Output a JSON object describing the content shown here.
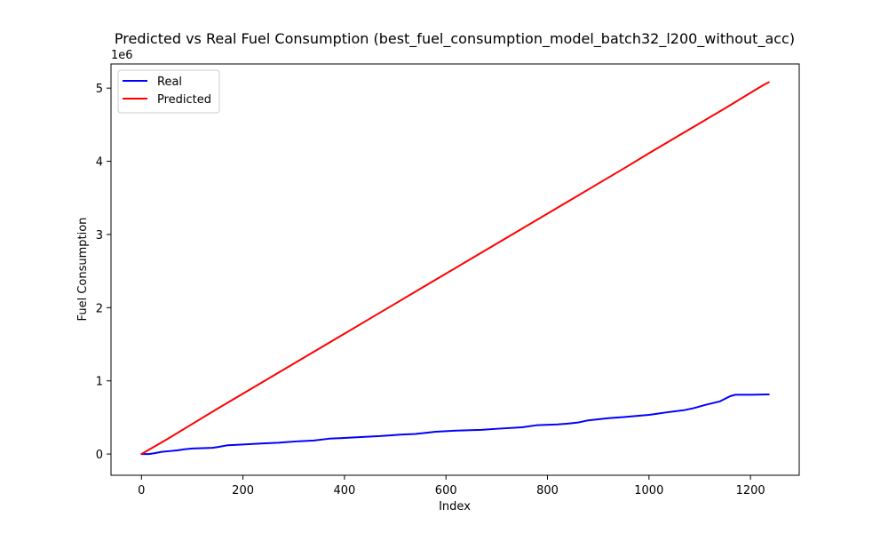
{
  "chart_data": {
    "type": "line",
    "title": "Predicted vs Real Fuel Consumption (best_fuel_consumption_model_batch32_l200_without_acc)",
    "xlabel": "Index",
    "ylabel": "Fuel Consumption",
    "y_offset_text": "1e6",
    "xlim": [
      -60,
      1296
    ],
    "ylim": [
      -290000,
      5330000
    ],
    "x_ticks": [
      0,
      200,
      400,
      600,
      800,
      1000,
      1200
    ],
    "x_tick_labels": [
      "0",
      "200",
      "400",
      "600",
      "800",
      "1000",
      "1200"
    ],
    "y_ticks": [
      0,
      1000000,
      2000000,
      3000000,
      4000000,
      5000000
    ],
    "y_tick_labels": [
      "0",
      "1",
      "2",
      "3",
      "4",
      "5"
    ],
    "grid": false,
    "legend_position": "top-left",
    "series": [
      {
        "name": "Real",
        "color": "#0000ff",
        "x": [
          0,
          15,
          25,
          40,
          55,
          70,
          85,
          100,
          140,
          150,
          170,
          200,
          240,
          270,
          290,
          310,
          340,
          370,
          400,
          440,
          470,
          490,
          510,
          540,
          560,
          580,
          620,
          670,
          700,
          750,
          780,
          820,
          840,
          860,
          880,
          920,
          950,
          1000,
          1010,
          1030,
          1070,
          1090,
          1110,
          1140,
          1160,
          1170,
          1200,
          1236
        ],
        "y": [
          0,
          0,
          10000,
          30000,
          40000,
          50000,
          65000,
          75000,
          85000,
          95000,
          120000,
          130000,
          145000,
          155000,
          165000,
          175000,
          185000,
          210000,
          220000,
          235000,
          245000,
          255000,
          265000,
          275000,
          290000,
          305000,
          320000,
          330000,
          345000,
          365000,
          395000,
          405000,
          415000,
          430000,
          460000,
          490000,
          505000,
          535000,
          545000,
          565000,
          600000,
          630000,
          670000,
          720000,
          790000,
          810000,
          810000,
          815000
        ]
      },
      {
        "name": "Predicted",
        "color": "#ff0000",
        "x": [
          0,
          50,
          100,
          150,
          200,
          250,
          300,
          350,
          400,
          450,
          500,
          550,
          600,
          650,
          700,
          750,
          800,
          850,
          900,
          950,
          1000,
          1050,
          1100,
          1150,
          1200,
          1225,
          1236
        ],
        "y": [
          0,
          200000,
          410000,
          620000,
          825000,
          1030000,
          1235000,
          1440000,
          1645000,
          1850000,
          2055000,
          2260000,
          2465000,
          2670000,
          2875000,
          3080000,
          3285000,
          3490000,
          3695000,
          3900000,
          4110000,
          4315000,
          4520000,
          4725000,
          4935000,
          5040000,
          5080000
        ]
      }
    ]
  }
}
